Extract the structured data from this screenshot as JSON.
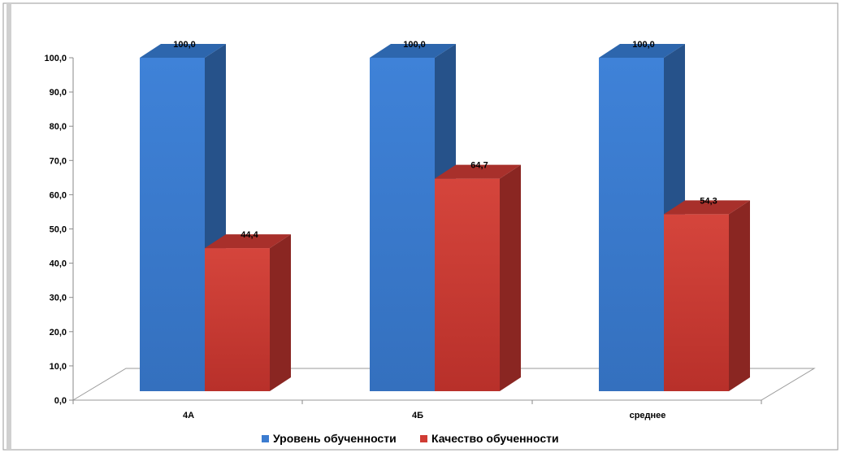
{
  "chart_data": {
    "type": "bar",
    "categories": [
      "4А",
      "4Б",
      "среднее"
    ],
    "series": [
      {
        "name": "Уровень обученности",
        "values": [
          100.0,
          100.0,
          100.0
        ],
        "labels": [
          "100,0",
          "100,0",
          "100,0"
        ],
        "color": "#3c7cd0",
        "side_color": "#26528a",
        "top_color": "#2d66ad"
      },
      {
        "name": "Качество обученности",
        "values": [
          44.4,
          64.7,
          54.3
        ],
        "labels": [
          "44,4",
          "64,7",
          "54,3"
        ],
        "color": "#d03c34",
        "side_color": "#8a2622",
        "top_color": "#a8302b"
      }
    ],
    "ylim": [
      0,
      100
    ],
    "y_ticks": [
      "0,0",
      "10,0",
      "20,0",
      "30,0",
      "40,0",
      "50,0",
      "60,0",
      "70,0",
      "80,0",
      "90,0",
      "100,0"
    ],
    "grid": false,
    "legend": "bottom",
    "style": "3d-column"
  }
}
